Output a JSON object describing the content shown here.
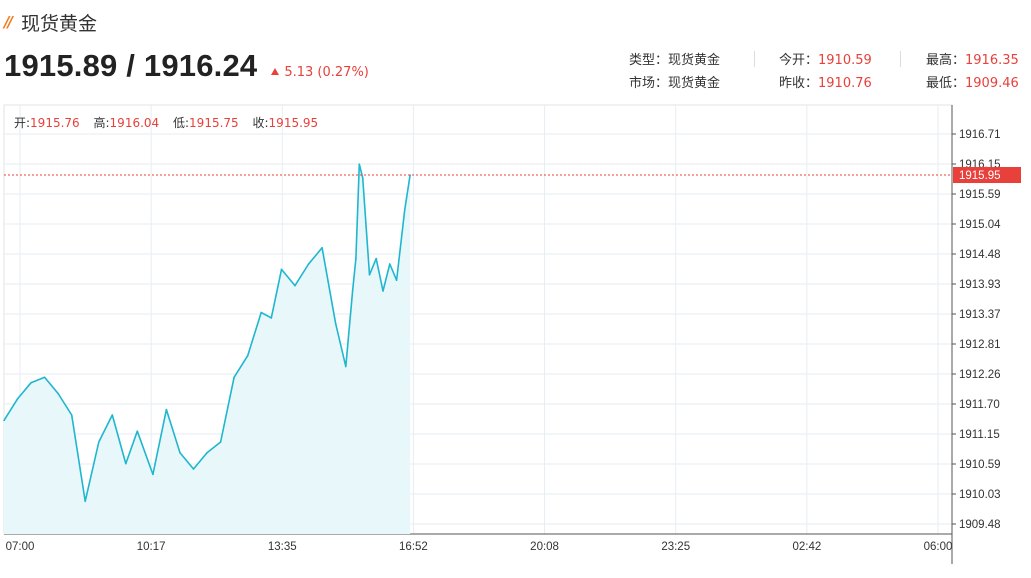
{
  "header": {
    "title": "现货黄金",
    "price": "1915.89 / 1916.24",
    "change": "5.13 (0.27%)"
  },
  "stats": {
    "type_label": "类型：",
    "type_value": "现货黄金",
    "market_label": "市场：",
    "market_value": "现货黄金",
    "open_label": "今开：",
    "open_value": "1910.59",
    "prev_close_label": "昨收：",
    "prev_close_value": "1910.76",
    "high_label": "最高：",
    "high_value": "1916.35",
    "low_label": "最低：",
    "low_value": "1909.46"
  },
  "ohlc": {
    "open_label": "开:",
    "open": "1915.76",
    "high_label": "高:",
    "high": "1916.04",
    "low_label": "低:",
    "low": "1915.75",
    "close_label": "收:",
    "close": "1915.95"
  },
  "colors": {
    "line": "#1fb6cf",
    "fill": "#e8f7fa",
    "accent": "#e8403a",
    "grid": "#e6eef3"
  },
  "chart_data": {
    "type": "area",
    "x_ticks": [
      "07:00",
      "10:17",
      "13:35",
      "16:52",
      "20:08",
      "23:25",
      "02:42",
      "06:00"
    ],
    "y_ticks": [
      "1916.71",
      "1916.15",
      "1915.59",
      "1915.04",
      "1914.48",
      "1913.93",
      "1913.37",
      "1912.81",
      "1912.26",
      "1911.70",
      "1911.15",
      "1910.59",
      "1910.03",
      "1909.48"
    ],
    "ylim": [
      1909.48,
      1916.71
    ],
    "current_value": 1915.95,
    "current_label": "1915.95",
    "series": [
      {
        "x": [
          "07:00",
          "07:20",
          "07:40",
          "08:00",
          "08:20",
          "08:40",
          "09:00",
          "09:20",
          "09:40",
          "10:00",
          "10:17",
          "10:40",
          "11:00",
          "11:20",
          "11:40",
          "12:00",
          "12:20",
          "12:40",
          "13:00",
          "13:20",
          "13:35",
          "13:50",
          "14:10",
          "14:30",
          "14:50",
          "15:10",
          "15:25",
          "15:35",
          "15:40",
          "15:45",
          "15:50",
          "16:00",
          "16:10",
          "16:20",
          "16:30",
          "16:40",
          "16:52",
          "17:00"
        ],
        "values": [
          1911.4,
          1911.8,
          1912.1,
          1912.2,
          1911.9,
          1911.5,
          1909.9,
          1911.0,
          1911.5,
          1910.6,
          1911.2,
          1910.4,
          1911.6,
          1910.8,
          1910.5,
          1910.8,
          1911.0,
          1912.2,
          1912.6,
          1913.4,
          1913.3,
          1914.2,
          1913.9,
          1914.3,
          1914.6,
          1913.2,
          1912.4,
          1913.8,
          1914.4,
          1916.15,
          1915.9,
          1914.1,
          1914.4,
          1913.8,
          1914.3,
          1914.0,
          1915.3,
          1915.95
        ]
      }
    ]
  }
}
